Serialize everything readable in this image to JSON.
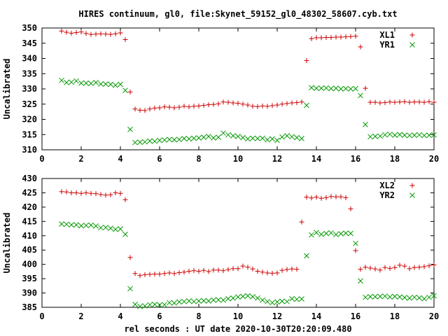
{
  "title": "HIRES continuum, gl0, file:Skynet_59152_gl0_48302_58607.cyb.txt",
  "xlabel": "rel seconds : UT date 2020-10-30T20:20:09.480",
  "colors": {
    "plus": "#cc0000",
    "cross": "#009900",
    "axis": "#000000"
  },
  "chart_data": [
    {
      "type": "scatter",
      "ylabel": "Uncalibrated",
      "xlim": [
        0,
        20
      ],
      "ylim": [
        310,
        350
      ],
      "xticks": [
        0,
        2,
        4,
        6,
        8,
        10,
        12,
        14,
        16,
        18,
        20
      ],
      "yticks": [
        310,
        315,
        320,
        325,
        330,
        335,
        340,
        345,
        350
      ],
      "legend": "top-right",
      "grid": false,
      "series": [
        {
          "name": "XL1",
          "marker": "plus",
          "x": [
            1.0,
            1.25,
            1.5,
            1.75,
            2.0,
            2.25,
            2.5,
            2.75,
            3.0,
            3.25,
            3.5,
            3.75,
            4.0,
            4.25,
            4.5,
            4.75,
            5.0,
            5.25,
            5.5,
            5.75,
            6.0,
            6.25,
            6.5,
            6.75,
            7.0,
            7.25,
            7.5,
            7.75,
            8.0,
            8.25,
            8.5,
            8.75,
            9.0,
            9.25,
            9.5,
            9.75,
            10.0,
            10.25,
            10.5,
            10.75,
            11.0,
            11.25,
            11.5,
            11.75,
            12.0,
            12.25,
            12.5,
            12.75,
            13.0,
            13.25,
            13.5,
            13.75,
            14.0,
            14.25,
            14.5,
            14.75,
            15.0,
            15.25,
            15.5,
            15.75,
            16.0,
            16.25,
            16.5,
            16.75,
            17.0,
            17.25,
            17.5,
            17.75,
            18.0,
            18.25,
            18.5,
            18.75,
            19.0,
            19.25,
            19.5,
            19.75,
            20.0
          ],
          "y": [
            349.0,
            348.6,
            348.3,
            348.5,
            348.7,
            348.2,
            347.9,
            348.0,
            348.1,
            348.0,
            347.9,
            348.1,
            348.4,
            346.2,
            329.0,
            323.4,
            323.0,
            322.9,
            323.4,
            323.7,
            323.8,
            324.1,
            324.0,
            323.8,
            324.0,
            324.3,
            324.1,
            324.3,
            324.4,
            324.6,
            324.8,
            324.9,
            325.1,
            325.7,
            325.6,
            325.4,
            325.3,
            325.0,
            324.7,
            324.3,
            324.2,
            324.4,
            324.3,
            324.5,
            324.7,
            325.0,
            325.2,
            325.4,
            325.5,
            325.7,
            339.3,
            346.5,
            346.8,
            346.8,
            346.9,
            346.9,
            347.0,
            347.0,
            347.1,
            347.2,
            347.3,
            343.8,
            330.2,
            325.6,
            325.6,
            325.4,
            325.5,
            325.7,
            325.6,
            325.7,
            325.8,
            325.6,
            325.7,
            325.7,
            325.6,
            325.8,
            325.6
          ]
        },
        {
          "name": "YR1",
          "marker": "cross",
          "x": [
            1.0,
            1.25,
            1.5,
            1.75,
            2.0,
            2.25,
            2.5,
            2.75,
            3.0,
            3.25,
            3.5,
            3.75,
            4.0,
            4.25,
            4.5,
            4.75,
            5.0,
            5.25,
            5.5,
            5.75,
            6.0,
            6.25,
            6.5,
            6.75,
            7.0,
            7.25,
            7.5,
            7.75,
            8.0,
            8.25,
            8.5,
            8.75,
            9.0,
            9.25,
            9.5,
            9.75,
            10.0,
            10.25,
            10.5,
            10.75,
            11.0,
            11.25,
            11.5,
            11.75,
            12.0,
            12.25,
            12.5,
            12.75,
            13.0,
            13.25,
            13.5,
            13.75,
            14.0,
            14.25,
            14.5,
            14.75,
            15.0,
            15.25,
            15.5,
            15.75,
            16.0,
            16.25,
            16.5,
            16.75,
            17.0,
            17.25,
            17.5,
            17.75,
            18.0,
            18.25,
            18.5,
            18.75,
            19.0,
            19.25,
            19.5,
            19.75,
            20.0
          ],
          "y": [
            332.8,
            332.1,
            332.2,
            332.6,
            331.9,
            331.9,
            331.8,
            332.1,
            331.6,
            331.6,
            331.5,
            331.2,
            331.5,
            329.5,
            316.7,
            312.4,
            312.5,
            312.6,
            312.9,
            312.8,
            313.1,
            313.2,
            313.4,
            313.3,
            313.4,
            313.7,
            313.6,
            313.8,
            313.9,
            314.1,
            314.4,
            313.9,
            314.1,
            315.5,
            314.9,
            314.6,
            314.4,
            314.0,
            313.6,
            313.8,
            313.7,
            313.8,
            313.3,
            313.6,
            313.1,
            314.2,
            314.6,
            314.3,
            314.0,
            313.7,
            324.6,
            330.4,
            330.2,
            330.2,
            330.3,
            330.1,
            330.2,
            330.0,
            330.1,
            330.0,
            330.1,
            327.8,
            318.3,
            314.3,
            314.4,
            314.5,
            314.9,
            315.1,
            314.8,
            315.0,
            314.8,
            314.7,
            314.8,
            314.9,
            314.7,
            314.8,
            314.9
          ]
        }
      ]
    },
    {
      "type": "scatter",
      "ylabel": "Uncalibrated",
      "xlim": [
        0,
        20
      ],
      "ylim": [
        385,
        430
      ],
      "xticks": [
        0,
        2,
        4,
        6,
        8,
        10,
        12,
        14,
        16,
        18,
        20
      ],
      "yticks": [
        385,
        390,
        395,
        400,
        405,
        410,
        415,
        420,
        425,
        430
      ],
      "legend": "top-right",
      "grid": false,
      "series": [
        {
          "name": "XL2",
          "marker": "plus",
          "x": [
            1.0,
            1.25,
            1.5,
            1.75,
            2.0,
            2.25,
            2.5,
            2.75,
            3.0,
            3.25,
            3.5,
            3.75,
            4.0,
            4.25,
            4.5,
            4.75,
            5.0,
            5.25,
            5.5,
            5.75,
            6.0,
            6.25,
            6.5,
            6.75,
            7.0,
            7.25,
            7.5,
            7.75,
            8.0,
            8.25,
            8.5,
            8.75,
            9.0,
            9.25,
            9.5,
            9.75,
            10.0,
            10.25,
            10.5,
            10.75,
            11.0,
            11.25,
            11.5,
            11.75,
            12.0,
            12.25,
            12.5,
            12.75,
            13.0,
            13.25,
            13.5,
            13.75,
            14.0,
            14.25,
            14.5,
            14.75,
            15.0,
            15.25,
            15.5,
            15.75,
            16.0,
            16.25,
            16.5,
            16.75,
            17.0,
            17.25,
            17.5,
            17.75,
            18.0,
            18.25,
            18.5,
            18.75,
            19.0,
            19.25,
            19.5,
            19.75,
            20.0
          ],
          "y": [
            425.4,
            425.3,
            425.0,
            425.0,
            424.8,
            425.0,
            424.8,
            424.7,
            424.4,
            424.2,
            424.3,
            425.0,
            424.8,
            422.6,
            402.4,
            396.8,
            396.1,
            396.4,
            396.5,
            396.6,
            396.6,
            396.8,
            397.0,
            396.8,
            397.1,
            397.3,
            397.6,
            397.8,
            397.6,
            397.9,
            397.5,
            398.0,
            398.0,
            397.8,
            398.2,
            398.5,
            398.5,
            399.4,
            399.0,
            398.4,
            397.6,
            397.3,
            397.0,
            396.9,
            397.0,
            397.9,
            398.2,
            398.4,
            398.3,
            414.8,
            423.5,
            423.2,
            423.5,
            423.1,
            423.3,
            423.7,
            423.6,
            423.6,
            423.3,
            419.4,
            404.8,
            398.3,
            399.0,
            398.7,
            398.4,
            398.0,
            398.9,
            398.6,
            398.9,
            399.7,
            399.4,
            398.5,
            398.9,
            399.0,
            399.2,
            399.5,
            399.8
          ]
        },
        {
          "name": "YR2",
          "marker": "cross",
          "x": [
            1.0,
            1.25,
            1.5,
            1.75,
            2.0,
            2.25,
            2.5,
            2.75,
            3.0,
            3.25,
            3.5,
            3.75,
            4.0,
            4.25,
            4.5,
            4.75,
            5.0,
            5.25,
            5.5,
            5.75,
            6.0,
            6.25,
            6.5,
            6.75,
            7.0,
            7.25,
            7.5,
            7.75,
            8.0,
            8.25,
            8.5,
            8.75,
            9.0,
            9.25,
            9.5,
            9.75,
            10.0,
            10.25,
            10.5,
            10.75,
            11.0,
            11.25,
            11.5,
            11.75,
            12.0,
            12.25,
            12.5,
            12.75,
            13.0,
            13.25,
            13.5,
            13.75,
            14.0,
            14.25,
            14.5,
            14.75,
            15.0,
            15.25,
            15.5,
            15.75,
            16.0,
            16.25,
            16.5,
            16.75,
            17.0,
            17.25,
            17.5,
            17.75,
            18.0,
            18.25,
            18.5,
            18.75,
            19.0,
            19.25,
            19.5,
            19.75,
            20.0
          ],
          "y": [
            414.1,
            414.0,
            413.8,
            413.8,
            413.5,
            413.6,
            413.7,
            413.4,
            412.8,
            412.9,
            412.6,
            412.2,
            412.4,
            410.5,
            391.5,
            386.0,
            385.3,
            385.5,
            385.9,
            386.0,
            385.8,
            385.9,
            386.6,
            386.5,
            386.9,
            387.0,
            387.2,
            387.0,
            387.2,
            387.3,
            387.2,
            387.5,
            387.6,
            387.5,
            388.0,
            388.2,
            388.6,
            388.8,
            389.0,
            388.7,
            388.2,
            387.5,
            387.0,
            386.6,
            386.9,
            387.1,
            387.0,
            388.0,
            387.8,
            387.9,
            403.0,
            410.3,
            411.1,
            410.5,
            410.8,
            411.0,
            410.4,
            410.7,
            410.9,
            410.8,
            407.3,
            394.2,
            388.5,
            388.7,
            388.7,
            388.8,
            388.9,
            388.6,
            388.8,
            388.6,
            388.4,
            388.2,
            388.5,
            388.3,
            388.0,
            388.5,
            389.0
          ]
        }
      ]
    }
  ]
}
